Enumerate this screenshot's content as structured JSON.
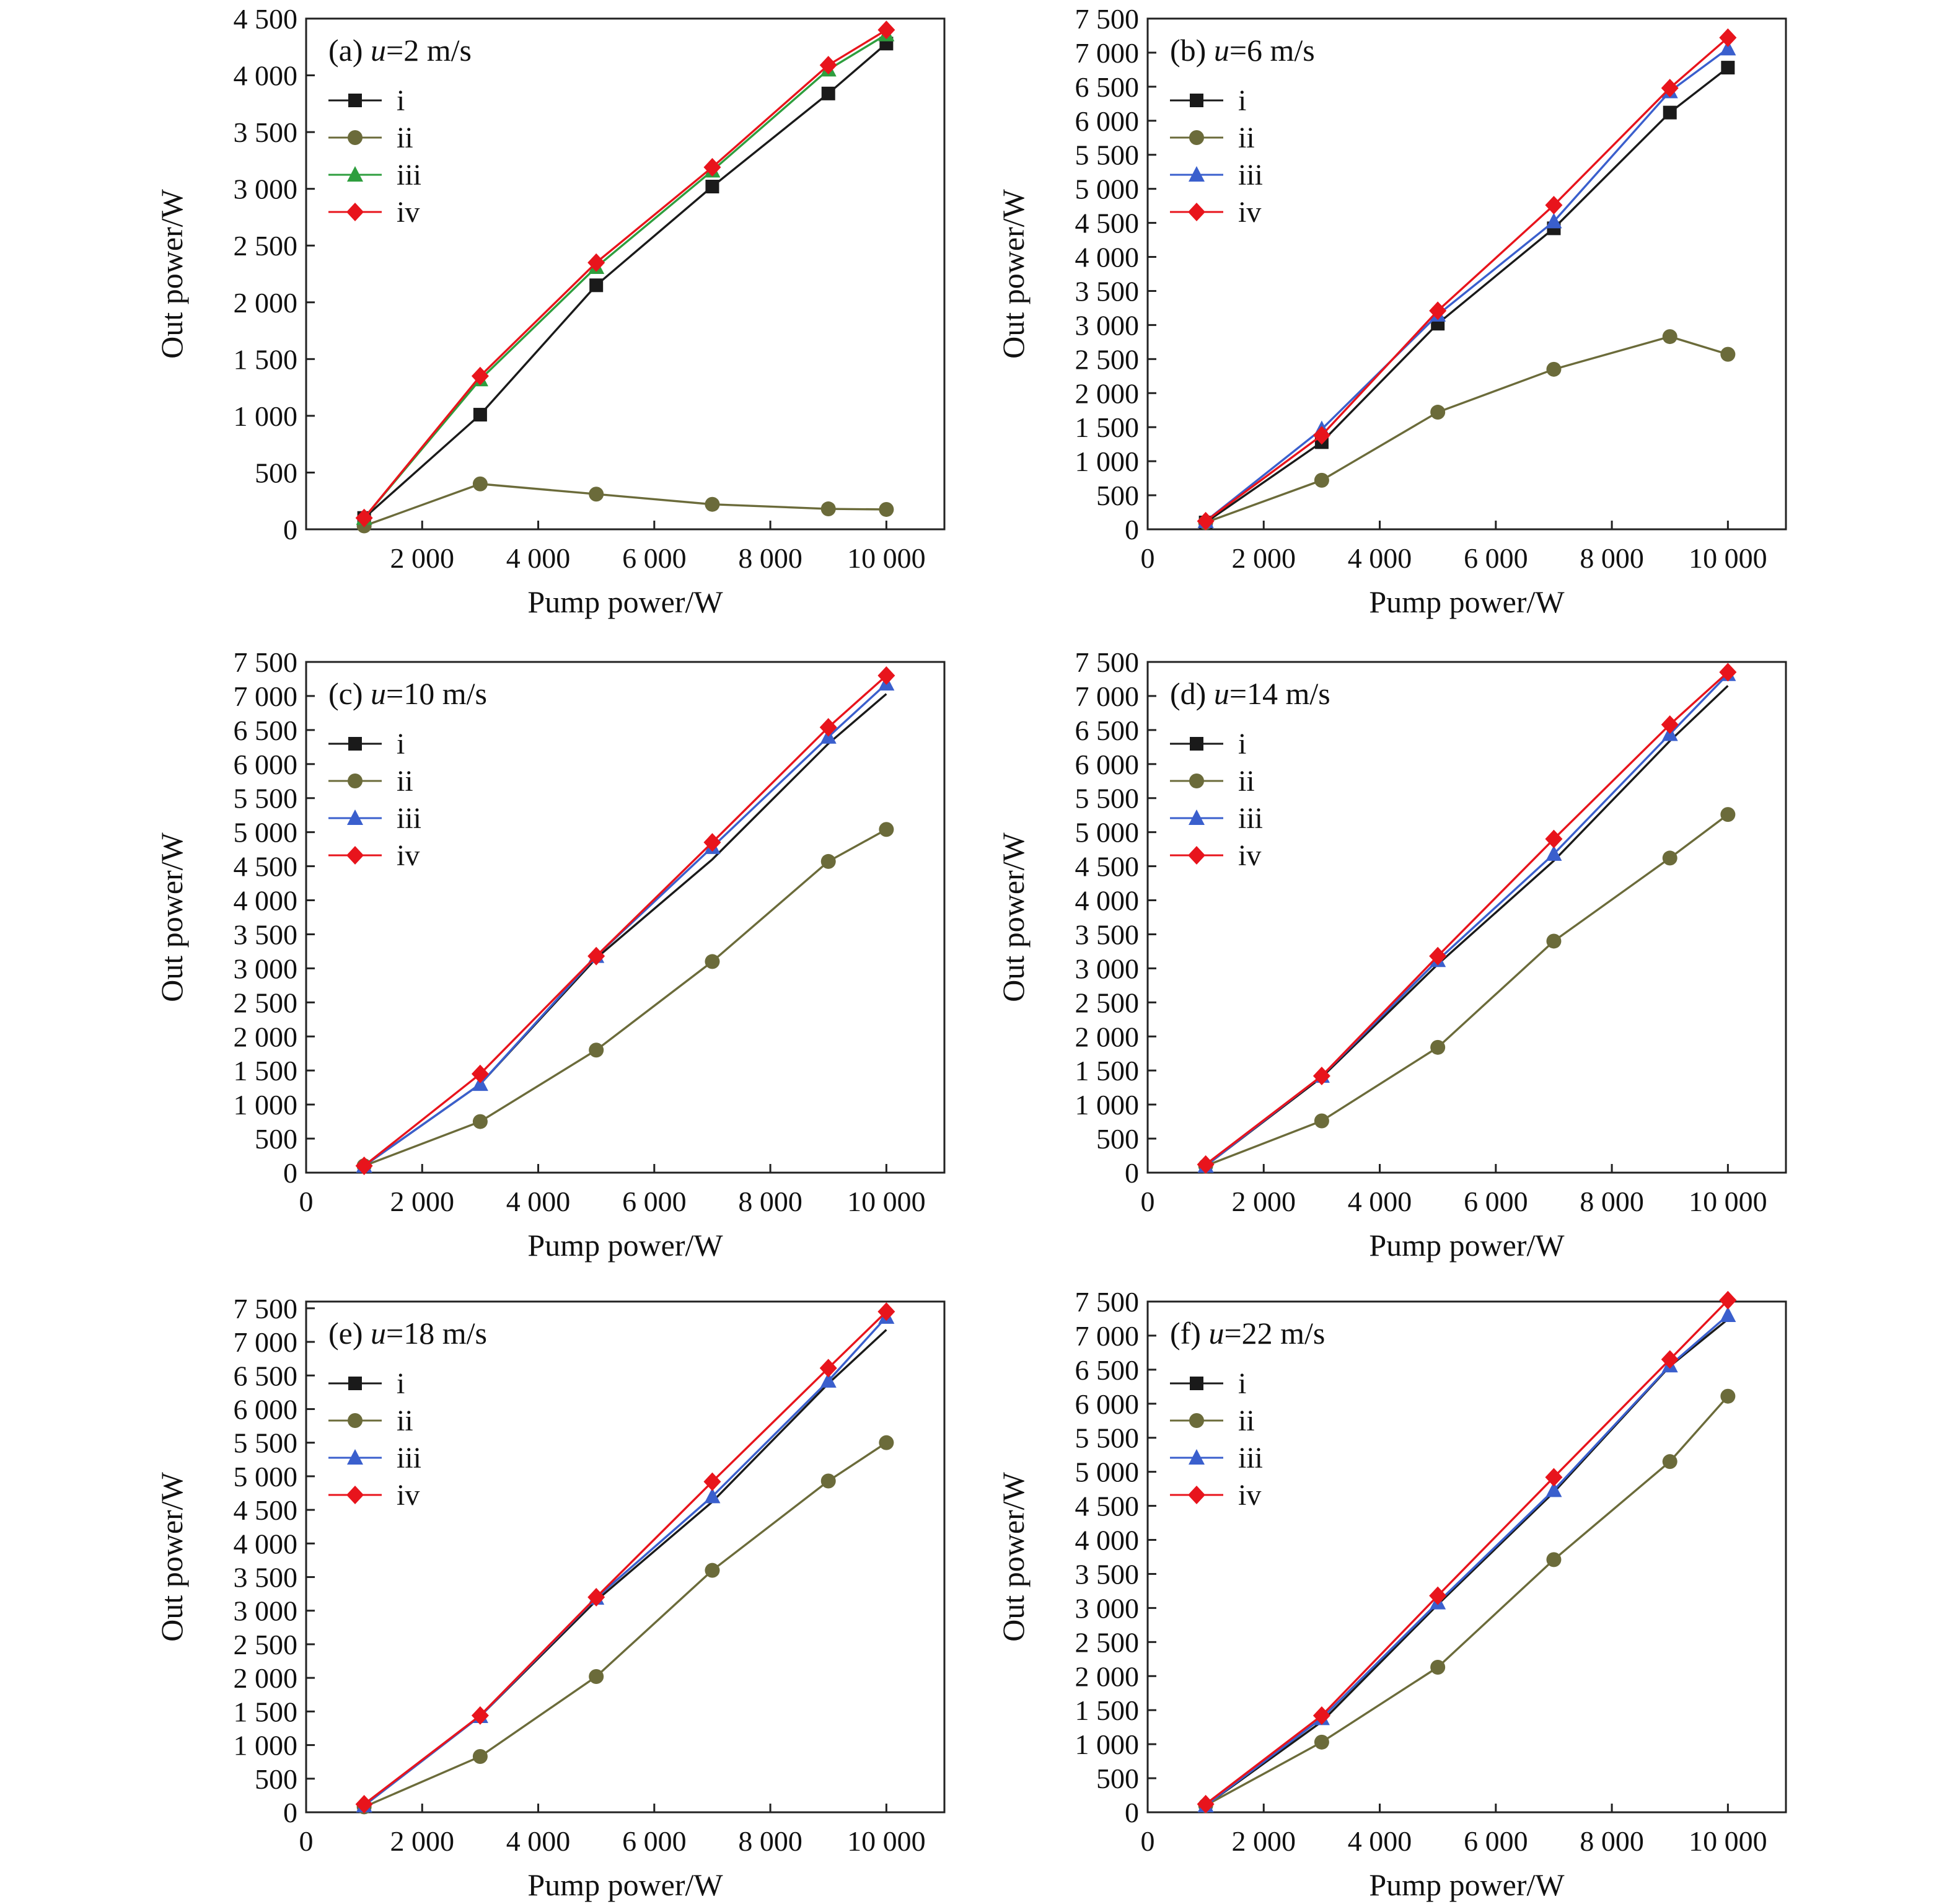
{
  "figure": {
    "series_colors": {
      "i": "#1a1a1a",
      "ii": "#6b6b3a",
      "iii": "#3a5fcd",
      "iv": "#e8141c"
    }
  },
  "chart_data": [
    {
      "type": "line",
      "title": "(a) u=2 m/s",
      "title_prefix": "(a) ",
      "title_var": "u",
      "title_suffix": "=2 m/s",
      "xlabel": "Pump power/W",
      "ylabel": "Out power/W",
      "xlim": [
        0,
        11000
      ],
      "ylim": [
        0,
        4500
      ],
      "xticks": [
        2000,
        4000,
        6000,
        8000,
        10000
      ],
      "xtick_labels": [
        "2 000",
        "4 000",
        "6 000",
        "8 000",
        "10 000"
      ],
      "yticks": [
        0,
        500,
        1000,
        1500,
        2000,
        2500,
        3000,
        3500,
        4000,
        4500
      ],
      "ytick_labels": [
        "0",
        "500",
        "1 000",
        "1 500",
        "2 000",
        "2 500",
        "3 000",
        "3 500",
        "4 000",
        "4 500"
      ],
      "x": [
        1000,
        3000,
        5000,
        7000,
        9000,
        10000
      ],
      "iii_color": "#2e9e3e",
      "legend_position": "top-left",
      "grid": false,
      "series": [
        {
          "name": "i",
          "marker": "square",
          "values": [
            100,
            1010,
            2150,
            3020,
            3840,
            4280
          ]
        },
        {
          "name": "ii",
          "marker": "circle",
          "values": [
            30,
            400,
            310,
            220,
            180,
            175
          ]
        },
        {
          "name": "iii",
          "marker": "triangle",
          "values": [
            100,
            1320,
            2310,
            3160,
            4050,
            4360
          ]
        },
        {
          "name": "iv",
          "marker": "diamond",
          "values": [
            100,
            1350,
            2350,
            3190,
            4090,
            4400
          ]
        }
      ]
    },
    {
      "type": "line",
      "title": "(b) u=6 m/s",
      "title_prefix": "(b) ",
      "title_var": "u",
      "title_suffix": "=6 m/s",
      "xlabel": "Pump power/W",
      "ylabel": "Out power/W",
      "xlim": [
        0,
        11000
      ],
      "ylim": [
        0,
        7500
      ],
      "xticks": [
        0,
        2000,
        4000,
        6000,
        8000,
        10000
      ],
      "xtick_labels": [
        "0",
        "2 000",
        "4 000",
        "6 000",
        "8 000",
        "10 000"
      ],
      "yticks": [
        0,
        500,
        1000,
        1500,
        2000,
        2500,
        3000,
        3500,
        4000,
        4500,
        5000,
        5500,
        6000,
        6500,
        7000,
        7500
      ],
      "ytick_labels": [
        "0",
        "500",
        "1 000",
        "1 500",
        "2 000",
        "2 500",
        "3 000",
        "3 500",
        "4 000",
        "4 500",
        "5 000",
        "5 500",
        "6 000",
        "6 500",
        "7 000",
        "7 500"
      ],
      "x": [
        1000,
        3000,
        5000,
        7000,
        9000,
        10000
      ],
      "legend_position": "top-left",
      "grid": false,
      "series": [
        {
          "name": "i",
          "marker": "square",
          "values": [
            100,
            1280,
            3020,
            4420,
            6120,
            6780
          ]
        },
        {
          "name": "ii",
          "marker": "circle",
          "values": [
            100,
            720,
            1720,
            2350,
            2830,
            2570
          ]
        },
        {
          "name": "iii",
          "marker": "triangle",
          "values": [
            120,
            1470,
            3150,
            4520,
            6430,
            7060
          ]
        },
        {
          "name": "iv",
          "marker": "diamond",
          "values": [
            120,
            1380,
            3210,
            4760,
            6480,
            7220
          ]
        }
      ]
    },
    {
      "type": "line",
      "title": "(c) u=10 m/s",
      "title_prefix": "(c) ",
      "title_var": "u",
      "title_suffix": "=10 m/s",
      "xlabel": "Pump power/W",
      "ylabel": "Out power/W",
      "xlim": [
        0,
        11000
      ],
      "ylim": [
        0,
        7500
      ],
      "xticks": [
        0,
        2000,
        4000,
        6000,
        8000,
        10000
      ],
      "xtick_labels": [
        "0",
        "2 000",
        "4 000",
        "6 000",
        "8 000",
        "10 000"
      ],
      "yticks": [
        0,
        500,
        1000,
        1500,
        2000,
        2500,
        3000,
        3500,
        4000,
        4500,
        5000,
        5500,
        6000,
        6500,
        7000,
        7500
      ],
      "ytick_labels": [
        "0",
        "500",
        "1 000",
        "1 500",
        "2 000",
        "2 500",
        "3 000",
        "3 500",
        "4 000",
        "4 500",
        "5 000",
        "5 500",
        "6 000",
        "6 500",
        "7 000",
        "7 500"
      ],
      "x": [
        1000,
        3000,
        5000,
        7000,
        9000,
        10000
      ],
      "legend_position": "top-left",
      "grid": false,
      "series": [
        {
          "name": "i",
          "values": [
            100,
            1300,
            3150,
            4600,
            6300,
            7030
          ]
        },
        {
          "name": "ii",
          "marker": "circle",
          "values": [
            100,
            750,
            1800,
            3100,
            4570,
            5040
          ]
        },
        {
          "name": "iii",
          "marker": "triangle",
          "values": [
            100,
            1300,
            3180,
            4780,
            6400,
            7180
          ]
        },
        {
          "name": "iv",
          "marker": "diamond",
          "values": [
            100,
            1450,
            3180,
            4850,
            6540,
            7300
          ]
        }
      ]
    },
    {
      "type": "line",
      "title": "(d) u=14 m/s",
      "title_prefix": "(d) ",
      "title_var": "u",
      "title_suffix": "=14 m/s",
      "xlabel": "Pump power/W",
      "ylabel": "Out power/W",
      "xlim": [
        0,
        11000
      ],
      "ylim": [
        0,
        7500
      ],
      "xticks": [
        0,
        2000,
        4000,
        6000,
        8000,
        10000
      ],
      "xtick_labels": [
        "0",
        "2 000",
        "4 000",
        "6 000",
        "8 000",
        "10 000"
      ],
      "yticks": [
        0,
        500,
        1000,
        1500,
        2000,
        2500,
        3000,
        3500,
        4000,
        4500,
        5000,
        5500,
        6000,
        6500,
        7000,
        7500
      ],
      "ytick_labels": [
        "0",
        "500",
        "1 000",
        "1 500",
        "2 000",
        "2 500",
        "3 000",
        "3 500",
        "4 000",
        "4 500",
        "5 000",
        "5 500",
        "6 000",
        "6 500",
        "7 000",
        "7 500"
      ],
      "x": [
        1000,
        3000,
        5000,
        7000,
        9000,
        10000
      ],
      "legend_position": "top-left",
      "grid": false,
      "series": [
        {
          "name": "i",
          "values": [
            100,
            1400,
            3060,
            4580,
            6340,
            7150
          ]
        },
        {
          "name": "ii",
          "marker": "circle",
          "values": [
            100,
            760,
            1840,
            3400,
            4620,
            5260
          ]
        },
        {
          "name": "iii",
          "marker": "triangle",
          "values": [
            100,
            1420,
            3120,
            4680,
            6440,
            7320
          ]
        },
        {
          "name": "iv",
          "marker": "diamond",
          "values": [
            120,
            1420,
            3180,
            4900,
            6580,
            7350
          ]
        }
      ]
    },
    {
      "type": "line",
      "title": "(e) u=18 m/s",
      "title_prefix": "(e) ",
      "title_var": "u",
      "title_suffix": "=18 m/s",
      "xlabel": "Pump power/W",
      "ylabel": "Out power/W",
      "xlim": [
        0,
        11000
      ],
      "ylim": [
        0,
        7600
      ],
      "xticks": [
        0,
        2000,
        4000,
        6000,
        8000,
        10000
      ],
      "xtick_labels": [
        "0",
        "2 000",
        "4 000",
        "6 000",
        "8 000",
        "10 000"
      ],
      "yticks": [
        0,
        500,
        1000,
        1500,
        2000,
        2500,
        3000,
        3500,
        4000,
        4500,
        5000,
        5500,
        6000,
        6500,
        7000,
        7500
      ],
      "ytick_labels": [
        "0",
        "500",
        "1 000",
        "1 500",
        "2 000",
        "2 500",
        "3 000",
        "3 500",
        "4 000",
        "4 500",
        "5 000",
        "5 500",
        "6 000",
        "6 500",
        "7 000",
        "7 500"
      ],
      "x": [
        1000,
        3000,
        5000,
        7000,
        9000,
        10000
      ],
      "legend_position": "top-left",
      "grid": false,
      "series": [
        {
          "name": "i",
          "values": [
            100,
            1430,
            3150,
            4620,
            6380,
            7180
          ]
        },
        {
          "name": "ii",
          "marker": "circle",
          "values": [
            80,
            830,
            2020,
            3600,
            4930,
            5500
          ]
        },
        {
          "name": "iii",
          "marker": "triangle",
          "values": [
            100,
            1430,
            3190,
            4700,
            6420,
            7370
          ]
        },
        {
          "name": "iv",
          "marker": "diamond",
          "values": [
            120,
            1440,
            3200,
            4920,
            6610,
            7450
          ]
        }
      ]
    },
    {
      "type": "line",
      "title": "(f) u=22 m/s",
      "title_prefix": "(f) ",
      "title_var": "u",
      "title_suffix": "=22 m/s",
      "xlabel": "Pump power/W",
      "ylabel": "Out power/W",
      "xlim": [
        0,
        11000
      ],
      "ylim": [
        0,
        7500
      ],
      "xticks": [
        0,
        2000,
        4000,
        6000,
        8000,
        10000
      ],
      "xtick_labels": [
        "0",
        "2 000",
        "4 000",
        "6 000",
        "8 000",
        "10 000"
      ],
      "yticks": [
        0,
        500,
        1000,
        1500,
        2000,
        2500,
        3000,
        3500,
        4000,
        4500,
        5000,
        5500,
        6000,
        6500,
        7000,
        7500
      ],
      "ytick_labels": [
        "0",
        "500",
        "1 000",
        "1 500",
        "2 000",
        "2 500",
        "3 000",
        "3 500",
        "4 000",
        "4 500",
        "5 000",
        "5 500",
        "6 000",
        "6 500",
        "7 000",
        "7 500"
      ],
      "x": [
        1000,
        3000,
        5000,
        7000,
        9000,
        10000
      ],
      "legend_position": "top-left",
      "grid": false,
      "series": [
        {
          "name": "i",
          "values": [
            100,
            1330,
            3050,
            4700,
            6550,
            7240
          ]
        },
        {
          "name": "ii",
          "marker": "circle",
          "values": [
            100,
            1030,
            2130,
            3710,
            5150,
            6110
          ]
        },
        {
          "name": "iii",
          "marker": "triangle",
          "values": [
            100,
            1380,
            3080,
            4730,
            6560,
            7300
          ]
        },
        {
          "name": "iv",
          "marker": "diamond",
          "values": [
            120,
            1420,
            3180,
            4920,
            6650,
            7520
          ]
        }
      ]
    }
  ]
}
